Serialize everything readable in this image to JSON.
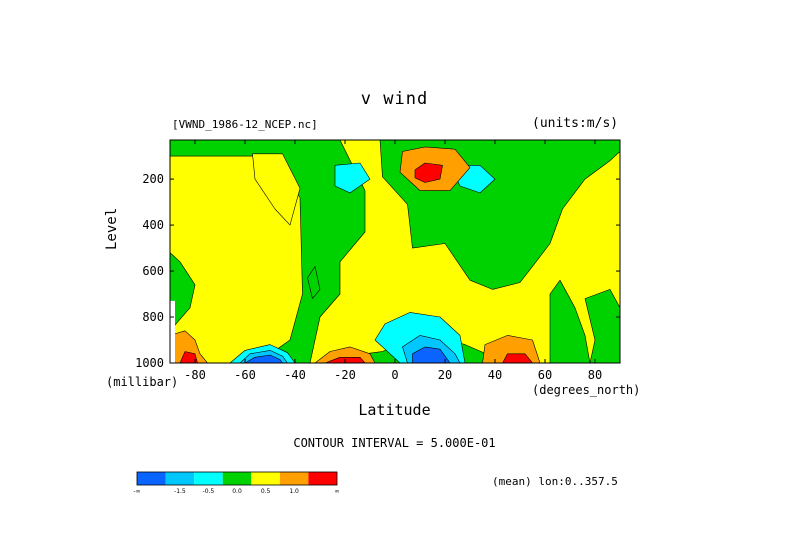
{
  "chart_data": {
    "type": "contour",
    "title": "v wind",
    "file_label": "[VWND_1986-12_NCEP.nc]",
    "units_label": "(units:m/s)",
    "xlabel": "Latitude",
    "xlabel_unit": "(degrees_north)",
    "ylabel": "Level",
    "ylabel_unit": "(millibar)",
    "xlim": [
      -90,
      90
    ],
    "ylim": [
      1000,
      30
    ],
    "x_ticks": [
      {
        "value": -80,
        "label": "-80"
      },
      {
        "value": -60,
        "label": "-60"
      },
      {
        "value": -40,
        "label": "-40"
      },
      {
        "value": -20,
        "label": "-20"
      },
      {
        "value": 0,
        "label": "0"
      },
      {
        "value": 20,
        "label": "20"
      },
      {
        "value": 40,
        "label": "40"
      },
      {
        "value": 60,
        "label": "60"
      },
      {
        "value": 80,
        "label": "80"
      }
    ],
    "y_ticks": [
      {
        "value": 200,
        "label": "200"
      },
      {
        "value": 400,
        "label": "400"
      },
      {
        "value": 600,
        "label": "600"
      },
      {
        "value": 800,
        "label": "800"
      },
      {
        "value": 1000,
        "label": "1000"
      }
    ],
    "contour_interval_label": "CONTOUR INTERVAL = 5.000E-01",
    "mean_label": "(mean) lon:0..357.5",
    "colorbar": {
      "colors": [
        "#0a64ff",
        "#00c8ff",
        "#00ffff",
        "#00d200",
        "#ffff00",
        "#ffa000",
        "#ff0000"
      ],
      "labels": [
        "-∞",
        "-1.5",
        "-0.5",
        "0.0",
        "0.5",
        "1.0",
        "∞"
      ]
    },
    "regions": [
      {
        "color": "#00d200",
        "pts": [
          [
            -90,
            30
          ],
          [
            90,
            30
          ],
          [
            90,
            1000
          ],
          [
            -90,
            1000
          ]
        ]
      },
      {
        "color": "#ffff00",
        "pts": [
          [
            -90,
            100
          ],
          [
            -50,
            100
          ],
          [
            -38,
            280
          ],
          [
            -37,
            700
          ],
          [
            -42,
            900
          ],
          [
            -55,
            1000
          ],
          [
            -90,
            1000
          ],
          [
            -90,
            860
          ],
          [
            -82,
            760
          ],
          [
            -80,
            660
          ],
          [
            -86,
            560
          ],
          [
            -90,
            520
          ]
        ]
      },
      {
        "color": "#ffff00",
        "pts": [
          [
            -57,
            90
          ],
          [
            -45,
            90
          ],
          [
            -38,
            240
          ],
          [
            -42,
            400
          ],
          [
            -48,
            330
          ],
          [
            -56,
            200
          ]
        ]
      },
      {
        "color": "#ffff00",
        "pts": [
          [
            -34,
            1000
          ],
          [
            -30,
            800
          ],
          [
            -22,
            700
          ],
          [
            -22,
            560
          ],
          [
            -12,
            430
          ],
          [
            -12,
            250
          ],
          [
            -22,
            30
          ],
          [
            -6,
            30
          ],
          [
            -5,
            190
          ],
          [
            5,
            310
          ],
          [
            7,
            500
          ],
          [
            20,
            480
          ],
          [
            30,
            640
          ],
          [
            39,
            680
          ],
          [
            50,
            650
          ],
          [
            55,
            580
          ],
          [
            62,
            480
          ],
          [
            67,
            330
          ],
          [
            76,
            200
          ],
          [
            86,
            120
          ],
          [
            90,
            80
          ],
          [
            90,
            1000
          ],
          [
            78,
            1000
          ],
          [
            76,
            880
          ],
          [
            72,
            760
          ],
          [
            66,
            640
          ],
          [
            62,
            700
          ],
          [
            62,
            1000
          ],
          [
            45,
            1000
          ],
          [
            28,
            920
          ],
          [
            15,
            880
          ],
          [
            5,
            900
          ],
          [
            -5,
            950
          ],
          [
            -12,
            960
          ],
          [
            -18,
            1000
          ]
        ]
      },
      {
        "color": "#00d200",
        "pts": [
          [
            76,
            720
          ],
          [
            80,
            900
          ],
          [
            78,
            1000
          ],
          [
            90,
            1000
          ],
          [
            90,
            760
          ],
          [
            86,
            680
          ]
        ]
      },
      {
        "color": "#00d200",
        "pts": [
          [
            -35,
            630
          ],
          [
            -32,
            580
          ],
          [
            -30,
            680
          ],
          [
            -33,
            720
          ]
        ]
      },
      {
        "color": "#00ffff",
        "pts": [
          [
            -24,
            140
          ],
          [
            -14,
            130
          ],
          [
            -10,
            200
          ],
          [
            -18,
            260
          ],
          [
            -24,
            230
          ]
        ]
      },
      {
        "color": "#00ffff",
        "pts": [
          [
            22,
            140
          ],
          [
            34,
            140
          ],
          [
            40,
            200
          ],
          [
            34,
            260
          ],
          [
            26,
            230
          ]
        ]
      },
      {
        "color": "#00ffff",
        "pts": [
          [
            2,
            1000
          ],
          [
            -8,
            900
          ],
          [
            -4,
            830
          ],
          [
            6,
            780
          ],
          [
            18,
            800
          ],
          [
            26,
            880
          ],
          [
            28,
            1000
          ]
        ]
      },
      {
        "color": "#00c8ff",
        "pts": [
          [
            5,
            1000
          ],
          [
            3,
            930
          ],
          [
            10,
            880
          ],
          [
            18,
            900
          ],
          [
            24,
            960
          ],
          [
            26,
            1000
          ]
        ]
      },
      {
        "color": "#0a64ff",
        "pts": [
          [
            7,
            1000
          ],
          [
            7,
            960
          ],
          [
            12,
            930
          ],
          [
            18,
            940
          ],
          [
            22,
            1000
          ]
        ]
      },
      {
        "color": "#00ffff",
        "pts": [
          [
            -66,
            1000
          ],
          [
            -60,
            945
          ],
          [
            -50,
            920
          ],
          [
            -43,
            955
          ],
          [
            -40,
            1000
          ]
        ]
      },
      {
        "color": "#00c8ff",
        "pts": [
          [
            -62,
            1000
          ],
          [
            -58,
            960
          ],
          [
            -50,
            945
          ],
          [
            -45,
            970
          ],
          [
            -43,
            1000
          ]
        ]
      },
      {
        "color": "#0a64ff",
        "pts": [
          [
            -60,
            1000
          ],
          [
            -56,
            975
          ],
          [
            -50,
            965
          ],
          [
            -46,
            985
          ],
          [
            -45,
            1000
          ]
        ]
      },
      {
        "color": "#ffa000",
        "pts": [
          [
            3,
            80
          ],
          [
            12,
            60
          ],
          [
            24,
            70
          ],
          [
            30,
            150
          ],
          [
            22,
            250
          ],
          [
            10,
            250
          ],
          [
            2,
            170
          ]
        ]
      },
      {
        "color": "#ff0000",
        "pts": [
          [
            8,
            160
          ],
          [
            12,
            130
          ],
          [
            19,
            140
          ],
          [
            18,
            200
          ],
          [
            12,
            215
          ],
          [
            8,
            195
          ]
        ]
      },
      {
        "color": "#ffa000",
        "pts": [
          [
            -32,
            1000
          ],
          [
            -26,
            950
          ],
          [
            -18,
            930
          ],
          [
            -10,
            960
          ],
          [
            -8,
            1000
          ]
        ]
      },
      {
        "color": "#ff0000",
        "pts": [
          [
            -28,
            1000
          ],
          [
            -22,
            975
          ],
          [
            -14,
            975
          ],
          [
            -12,
            1000
          ]
        ]
      },
      {
        "color": "#ffa000",
        "pts": [
          [
            35,
            1000
          ],
          [
            36,
            920
          ],
          [
            45,
            880
          ],
          [
            55,
            900
          ],
          [
            58,
            1000
          ]
        ]
      },
      {
        "color": "#ff0000",
        "pts": [
          [
            43,
            1000
          ],
          [
            45,
            960
          ],
          [
            52,
            960
          ],
          [
            55,
            1000
          ]
        ]
      },
      {
        "color": "#ffa000",
        "pts": [
          [
            -88,
            1000
          ],
          [
            -90,
            880
          ],
          [
            -84,
            860
          ],
          [
            -80,
            900
          ],
          [
            -78,
            960
          ],
          [
            -75,
            1000
          ]
        ]
      },
      {
        "color": "#ff0000",
        "pts": [
          [
            -86,
            1000
          ],
          [
            -84,
            950
          ],
          [
            -80,
            960
          ],
          [
            -79,
            1000
          ]
        ]
      },
      {
        "color": "#ffffff",
        "pts": [
          [
            -90,
            730
          ],
          [
            -88,
            730
          ],
          [
            -88,
            1000
          ],
          [
            -90,
            1000
          ]
        ]
      }
    ]
  }
}
